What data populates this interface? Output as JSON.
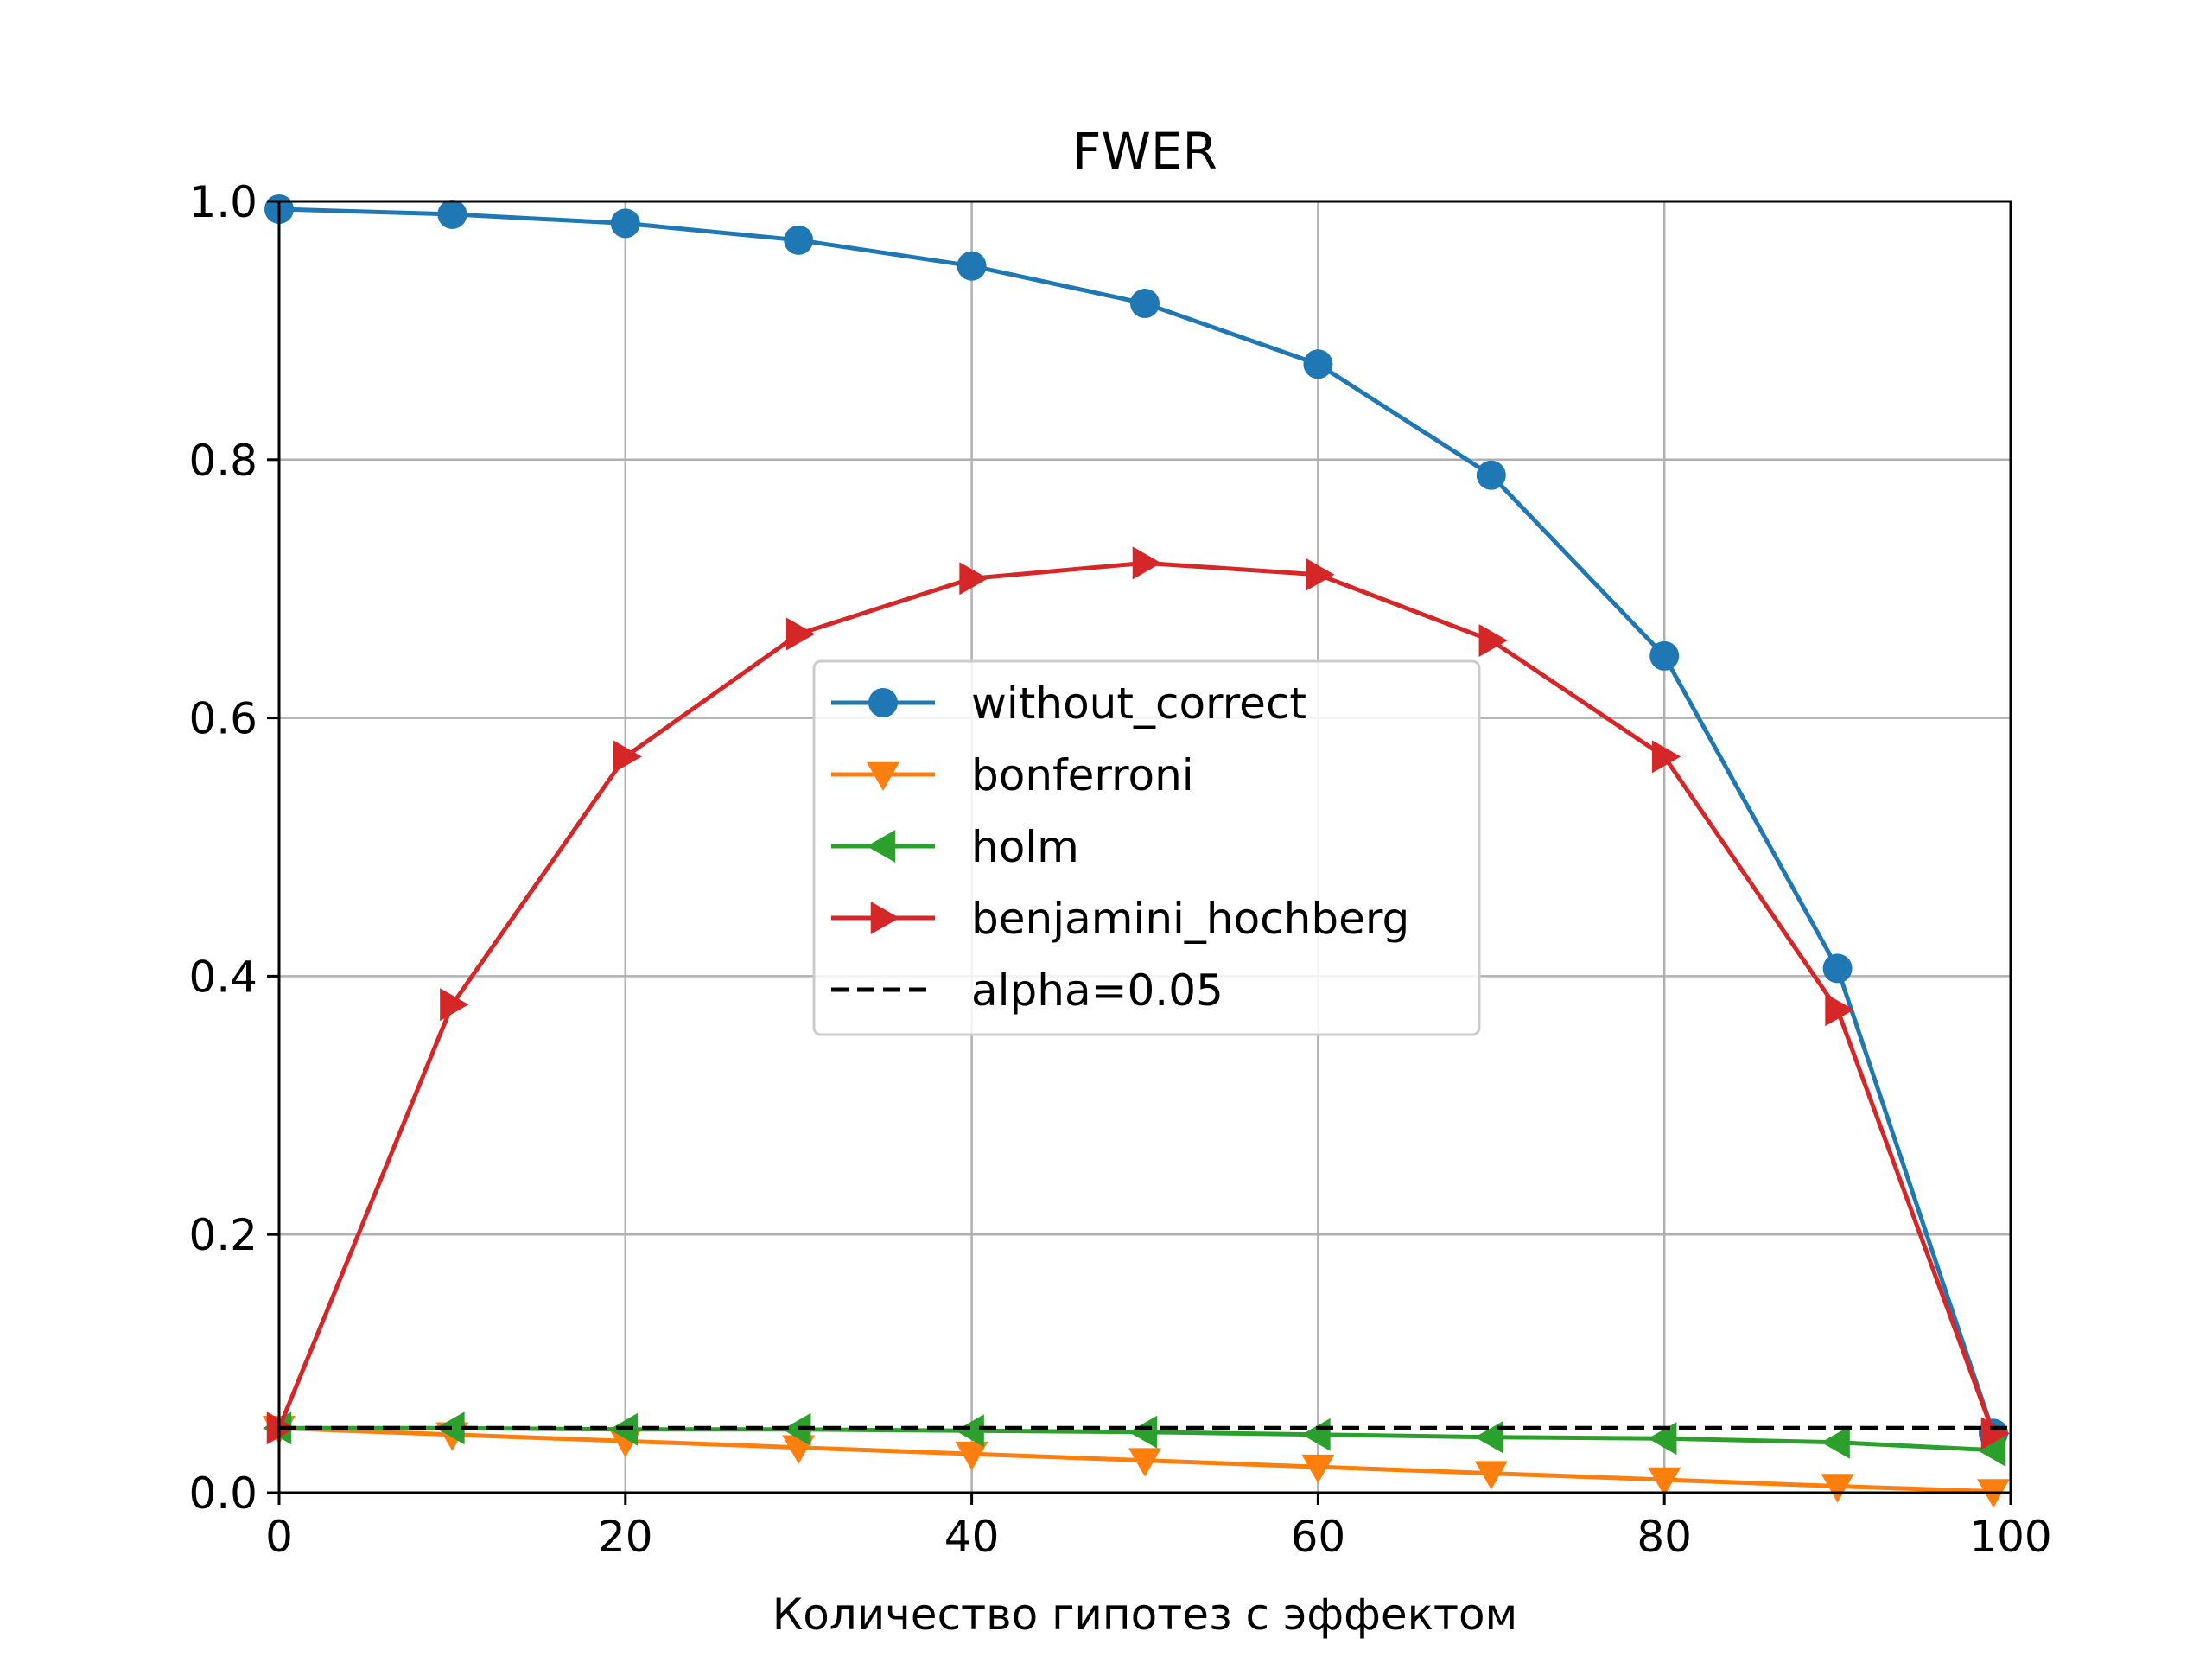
{
  "chart_data": {
    "type": "line",
    "title": "FWER",
    "xlabel": "Количество гипотез с эффектом",
    "ylabel": "",
    "xlim": [
      0,
      100
    ],
    "ylim": [
      0,
      1.0
    ],
    "x": [
      0,
      10,
      20,
      30,
      40,
      50,
      60,
      70,
      80,
      90,
      99
    ],
    "xticks": [
      0,
      20,
      40,
      60,
      80,
      100
    ],
    "xtick_labels": [
      "0",
      "20",
      "40",
      "60",
      "80",
      "100"
    ],
    "yticks": [
      0.0,
      0.2,
      0.4,
      0.6,
      0.8,
      1.0
    ],
    "ytick_labels": [
      "0.0",
      "0.2",
      "0.4",
      "0.6",
      "0.8",
      "1.0"
    ],
    "grid": true,
    "legend_position": "center",
    "series": [
      {
        "name": "without_correct",
        "color": "#1f77b4",
        "marker": "circle",
        "values": [
          0.994,
          0.99,
          0.983,
          0.97,
          0.95,
          0.921,
          0.874,
          0.788,
          0.648,
          0.406,
          0.046
        ]
      },
      {
        "name": "bonferroni",
        "color": "#ff7f0e",
        "marker": "triangle-down",
        "values": [
          0.05,
          0.045,
          0.04,
          0.035,
          0.03,
          0.025,
          0.02,
          0.015,
          0.01,
          0.005,
          0.001
        ]
      },
      {
        "name": "holm",
        "color": "#2ca02c",
        "marker": "triangle-left",
        "values": [
          0.05,
          0.05,
          0.049,
          0.049,
          0.048,
          0.047,
          0.045,
          0.043,
          0.042,
          0.039,
          0.033
        ]
      },
      {
        "name": "benjamini_hochberg",
        "color": "#d62728",
        "marker": "triangle-right",
        "values": [
          0.05,
          0.378,
          0.57,
          0.665,
          0.708,
          0.72,
          0.711,
          0.66,
          0.57,
          0.374,
          0.046
        ]
      }
    ],
    "reference_line": {
      "name": "alpha=0.05",
      "value": 0.05,
      "color": "#000000",
      "style": "dashed"
    }
  }
}
